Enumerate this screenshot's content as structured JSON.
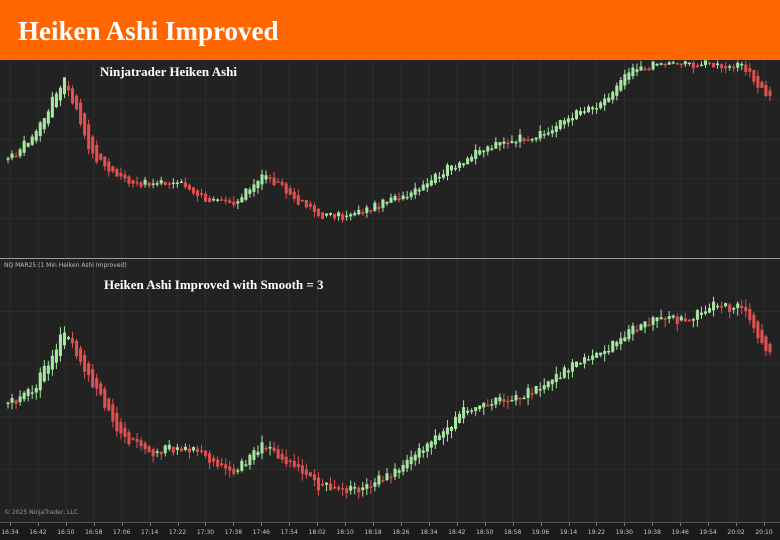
{
  "header": {
    "title": "Heiken Ashi Improved"
  },
  "top_pane": {
    "label": "Ninjatrader Heiken Ashi"
  },
  "bottom_pane": {
    "label": "Heiken Ashi Improved with Smooth = 3",
    "instrument": "NQ MAR25 (1 Min Heiken Ashi Improved)"
  },
  "footer": {
    "copyright": "© 2025 NinjaTrader, LLC"
  },
  "time_axis": {
    "labels": [
      "16:34",
      "16:42",
      "16:50",
      "16:58",
      "17:06",
      "17:14",
      "17:22",
      "17:30",
      "17:38",
      "17:46",
      "17:54",
      "18:02",
      "18:10",
      "18:18",
      "18:26",
      "18:34",
      "18:42",
      "18:50",
      "18:58",
      "19:06",
      "19:14",
      "19:22",
      "19:30",
      "19:38",
      "19:46",
      "19:54",
      "20:02",
      "20:10"
    ]
  },
  "colors": {
    "banner": "#ff6600",
    "up_candle": "#a8e6a3",
    "down_candle": "#e05050",
    "background": "#222222",
    "grid": "#2d2d2d"
  },
  "chart_data": [
    {
      "type": "candlestick",
      "name_shown": "Ninjatrader Heiken Ashi",
      "trend_points": [
        {
          "time": "16:34",
          "level": 0.42
        },
        {
          "time": "16:42",
          "level": 0.6
        },
        {
          "time": "16:50",
          "level": 0.92
        },
        {
          "time": "16:58",
          "level": 0.45
        },
        {
          "time": "17:06",
          "level": 0.32
        },
        {
          "time": "17:14",
          "level": 0.28
        },
        {
          "time": "17:22",
          "level": 0.3
        },
        {
          "time": "17:30",
          "level": 0.2
        },
        {
          "time": "17:38",
          "level": 0.15
        },
        {
          "time": "17:46",
          "level": 0.35
        },
        {
          "time": "17:54",
          "level": 0.22
        },
        {
          "time": "18:02",
          "level": 0.1
        },
        {
          "time": "18:10",
          "level": 0.09
        },
        {
          "time": "18:18",
          "level": 0.15
        },
        {
          "time": "18:26",
          "level": 0.22
        },
        {
          "time": "18:34",
          "level": 0.32
        },
        {
          "time": "18:42",
          "level": 0.42
        },
        {
          "time": "18:50",
          "level": 0.5
        },
        {
          "time": "18:58",
          "level": 0.56
        },
        {
          "time": "19:06",
          "level": 0.58
        },
        {
          "time": "19:14",
          "level": 0.7
        },
        {
          "time": "19:22",
          "level": 0.75
        },
        {
          "time": "19:30",
          "level": 0.95
        },
        {
          "time": "19:38",
          "level": 1.0
        },
        {
          "time": "19:46",
          "level": 1.0
        },
        {
          "time": "19:54",
          "level": 1.0
        },
        {
          "time": "20:02",
          "level": 0.98
        },
        {
          "time": "20:10",
          "level": 0.8
        }
      ]
    },
    {
      "type": "candlestick",
      "name_shown": "Heiken Ashi Improved with Smooth = 3",
      "trend_points": [
        {
          "time": "16:34",
          "level": 0.45
        },
        {
          "time": "16:42",
          "level": 0.55
        },
        {
          "time": "16:50",
          "level": 0.8
        },
        {
          "time": "16:58",
          "level": 0.55
        },
        {
          "time": "17:06",
          "level": 0.32
        },
        {
          "time": "17:14",
          "level": 0.24
        },
        {
          "time": "17:22",
          "level": 0.26
        },
        {
          "time": "17:30",
          "level": 0.22
        },
        {
          "time": "17:38",
          "level": 0.14
        },
        {
          "time": "17:46",
          "level": 0.28
        },
        {
          "time": "17:54",
          "level": 0.18
        },
        {
          "time": "18:02",
          "level": 0.08
        },
        {
          "time": "18:10",
          "level": 0.06
        },
        {
          "time": "18:18",
          "level": 0.1
        },
        {
          "time": "18:26",
          "level": 0.18
        },
        {
          "time": "18:34",
          "level": 0.28
        },
        {
          "time": "18:42",
          "level": 0.42
        },
        {
          "time": "18:50",
          "level": 0.46
        },
        {
          "time": "18:58",
          "level": 0.5
        },
        {
          "time": "19:06",
          "level": 0.55
        },
        {
          "time": "19:14",
          "level": 0.64
        },
        {
          "time": "19:22",
          "level": 0.68
        },
        {
          "time": "19:30",
          "level": 0.8
        },
        {
          "time": "19:38",
          "level": 0.86
        },
        {
          "time": "19:46",
          "level": 0.84
        },
        {
          "time": "19:54",
          "level": 0.92
        },
        {
          "time": "20:02",
          "level": 0.9
        },
        {
          "time": "20:10",
          "level": 0.7
        }
      ]
    }
  ]
}
